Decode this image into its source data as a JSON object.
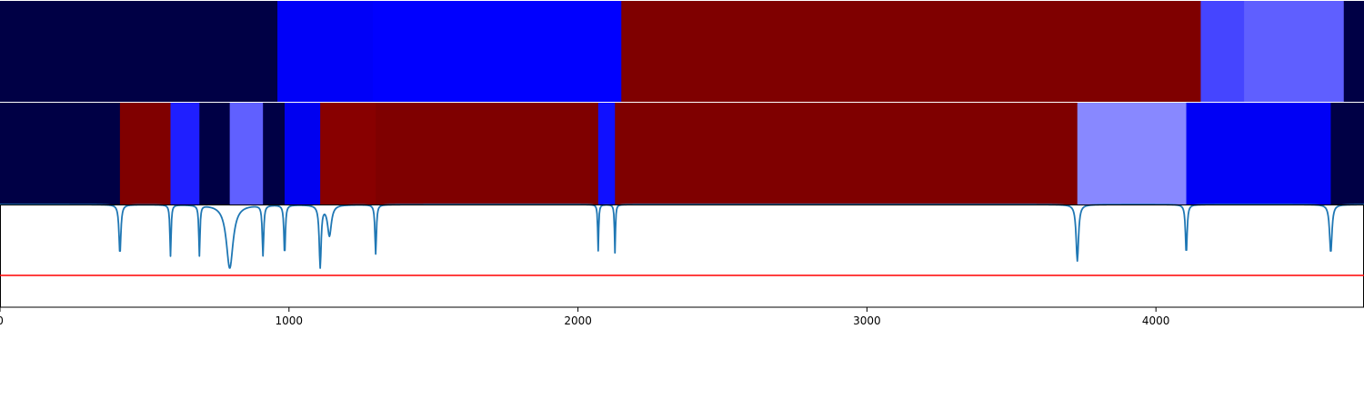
{
  "chart_data": [
    {
      "type": "heatmap",
      "name": "segment-band-top",
      "segments": [
        {
          "x0": 0,
          "x1": 960,
          "color": "#000045"
        },
        {
          "x0": 960,
          "x1": 1290,
          "color": "#0000f8"
        },
        {
          "x0": 1290,
          "x1": 2150,
          "color": "#0000ff"
        },
        {
          "x0": 2150,
          "x1": 4155,
          "color": "#7f0000"
        },
        {
          "x0": 4155,
          "x1": 4305,
          "color": "#4545ff"
        },
        {
          "x0": 4305,
          "x1": 4650,
          "color": "#5f5fff"
        },
        {
          "x0": 4650,
          "x1": 4720,
          "color": "#000045"
        }
      ]
    },
    {
      "type": "heatmap",
      "name": "segment-band-bottom",
      "segments": [
        {
          "x0": 0,
          "x1": 415,
          "color": "#000045"
        },
        {
          "x0": 415,
          "x1": 590,
          "color": "#800000"
        },
        {
          "x0": 590,
          "x1": 690,
          "color": "#1f1fff"
        },
        {
          "x0": 690,
          "x1": 795,
          "color": "#000045"
        },
        {
          "x0": 795,
          "x1": 910,
          "color": "#6060ff"
        },
        {
          "x0": 910,
          "x1": 985,
          "color": "#000045"
        },
        {
          "x0": 985,
          "x1": 1108,
          "color": "#0000f0"
        },
        {
          "x0": 1108,
          "x1": 1300,
          "color": "#880000"
        },
        {
          "x0": 1300,
          "x1": 2070,
          "color": "#7f0000"
        },
        {
          "x0": 2070,
          "x1": 2128,
          "color": "#1010ff"
        },
        {
          "x0": 2128,
          "x1": 3728,
          "color": "#7f0000"
        },
        {
          "x0": 3728,
          "x1": 4105,
          "color": "#8888ff"
        },
        {
          "x0": 4105,
          "x1": 4605,
          "color": "#0000f5"
        },
        {
          "x0": 4605,
          "x1": 4720,
          "color": "#000045"
        }
      ]
    },
    {
      "type": "line",
      "name": "dip-signal",
      "xlim": [
        0,
        4720
      ],
      "ylim": [
        0,
        1.0
      ],
      "line_color": "#1f77b4",
      "threshold": 0.31,
      "threshold_color": "#ff0000",
      "dips": [
        {
          "center": 415,
          "depth": 0.48,
          "width": 4
        },
        {
          "center": 590,
          "depth": 0.5,
          "width": 2.5
        },
        {
          "center": 690,
          "depth": 0.49,
          "width": 2.5
        },
        {
          "center": 795,
          "depth": 0.62,
          "width": 14
        },
        {
          "center": 910,
          "depth": 0.49,
          "width": 3
        },
        {
          "center": 985,
          "depth": 0.49,
          "width": 3
        },
        {
          "center": 1108,
          "depth": 0.6,
          "width": 4
        },
        {
          "center": 1140,
          "depth": 0.3,
          "width": 8
        },
        {
          "center": 1300,
          "depth": 0.48,
          "width": 3
        },
        {
          "center": 2070,
          "depth": 0.45,
          "width": 2
        },
        {
          "center": 2128,
          "depth": 0.47,
          "width": 2
        },
        {
          "center": 3728,
          "depth": 0.55,
          "width": 5
        },
        {
          "center": 4105,
          "depth": 0.48,
          "width": 3.5
        },
        {
          "center": 4605,
          "depth": 0.47,
          "width": 5
        }
      ],
      "x_ticks": [
        0,
        1000,
        2000,
        3000,
        4000
      ],
      "x_tick_labels": [
        "0",
        "1000",
        "2000",
        "3000",
        "4000"
      ]
    }
  ]
}
